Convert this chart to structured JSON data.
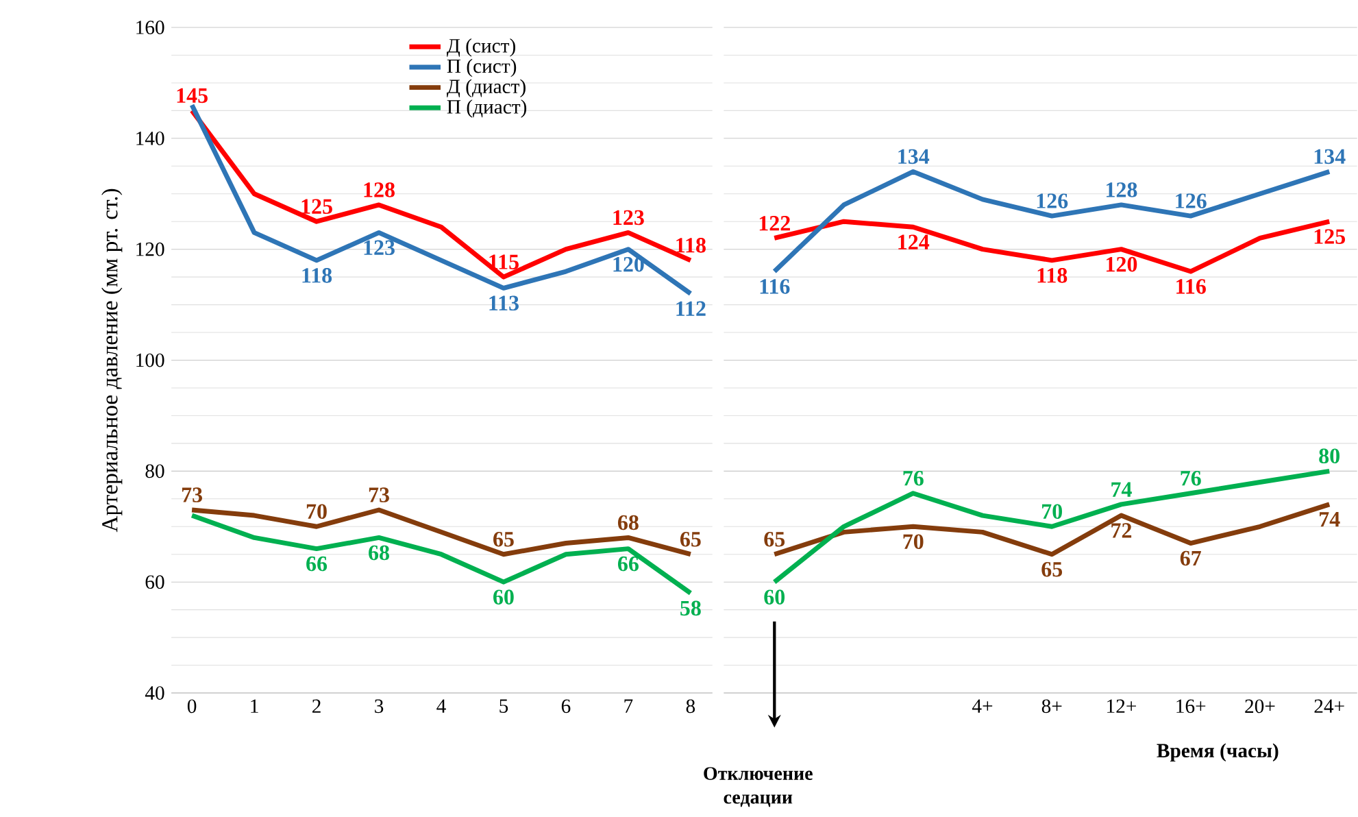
{
  "chart_data": [
    {
      "type": "line",
      "ylabel": "Артериальное давление (мм рт. ст.)",
      "categories": [
        "0",
        "1",
        "2",
        "3",
        "4",
        "5",
        "6",
        "7",
        "8"
      ],
      "ylim": [
        40,
        160
      ],
      "yticks": [
        40,
        60,
        80,
        100,
        120,
        140,
        160
      ],
      "grid": "y",
      "legend": "top",
      "series": [
        {
          "name": "Д (сист)",
          "color": "#ff0000",
          "values": [
            145,
            130,
            125,
            128,
            124,
            115,
            120,
            123,
            118
          ],
          "value_labels": [
            "145",
            null,
            "125",
            "128",
            null,
            "115",
            null,
            "123",
            "118"
          ]
        },
        {
          "name": "П (сист)",
          "color": "#2e75b6",
          "values": [
            146,
            123,
            118,
            123,
            118,
            113,
            116,
            120,
            112
          ],
          "value_labels": [
            null,
            null,
            "118",
            "123",
            null,
            "113",
            null,
            "120",
            "112"
          ]
        },
        {
          "name": "Д (диаст)",
          "color": "#843c0c",
          "values": [
            73,
            72,
            70,
            73,
            69,
            65,
            67,
            68,
            65
          ],
          "value_labels": [
            "73",
            null,
            "70",
            "73",
            null,
            "65",
            null,
            "68",
            "65"
          ]
        },
        {
          "name": "П (диаст)",
          "color": "#00b050",
          "values": [
            72,
            68,
            66,
            68,
            65,
            60,
            65,
            66,
            58
          ],
          "value_labels": [
            null,
            null,
            "66",
            "68",
            null,
            "60",
            null,
            "66",
            "58"
          ]
        }
      ]
    },
    {
      "type": "line",
      "xlabel": "Время (часы)",
      "categories": [
        null,
        null,
        null,
        "4+",
        "8+",
        "12+",
        "16+",
        "20+",
        "24+"
      ],
      "ylim": [
        40,
        160
      ],
      "grid": "y",
      "tick_labels": "x",
      "annotations": [
        "Отключение седации"
      ],
      "series": [
        {
          "color": "#ff0000",
          "values": [
            122,
            125,
            124,
            120,
            118,
            120,
            116,
            122,
            125
          ],
          "value_labels": [
            "122",
            null,
            "124",
            null,
            "118",
            "120",
            "116",
            null,
            "125"
          ]
        },
        {
          "color": "#2e75b6",
          "values": [
            116,
            128,
            134,
            129,
            126,
            128,
            126,
            130,
            134
          ],
          "value_labels": [
            "116",
            null,
            "134",
            null,
            "126",
            "128",
            "126",
            null,
            "134"
          ]
        },
        {
          "color": "#843c0c",
          "values": [
            65,
            69,
            70,
            69,
            65,
            72,
            67,
            70,
            74
          ],
          "value_labels": [
            "65",
            null,
            "70",
            null,
            "65",
            "72",
            "67",
            null,
            "74"
          ]
        },
        {
          "color": "#00b050",
          "values": [
            60,
            70,
            76,
            72,
            70,
            74,
            76,
            78,
            80
          ],
          "value_labels": [
            "60",
            null,
            "76",
            null,
            "70",
            "74",
            "76",
            null,
            "80"
          ]
        }
      ]
    }
  ]
}
